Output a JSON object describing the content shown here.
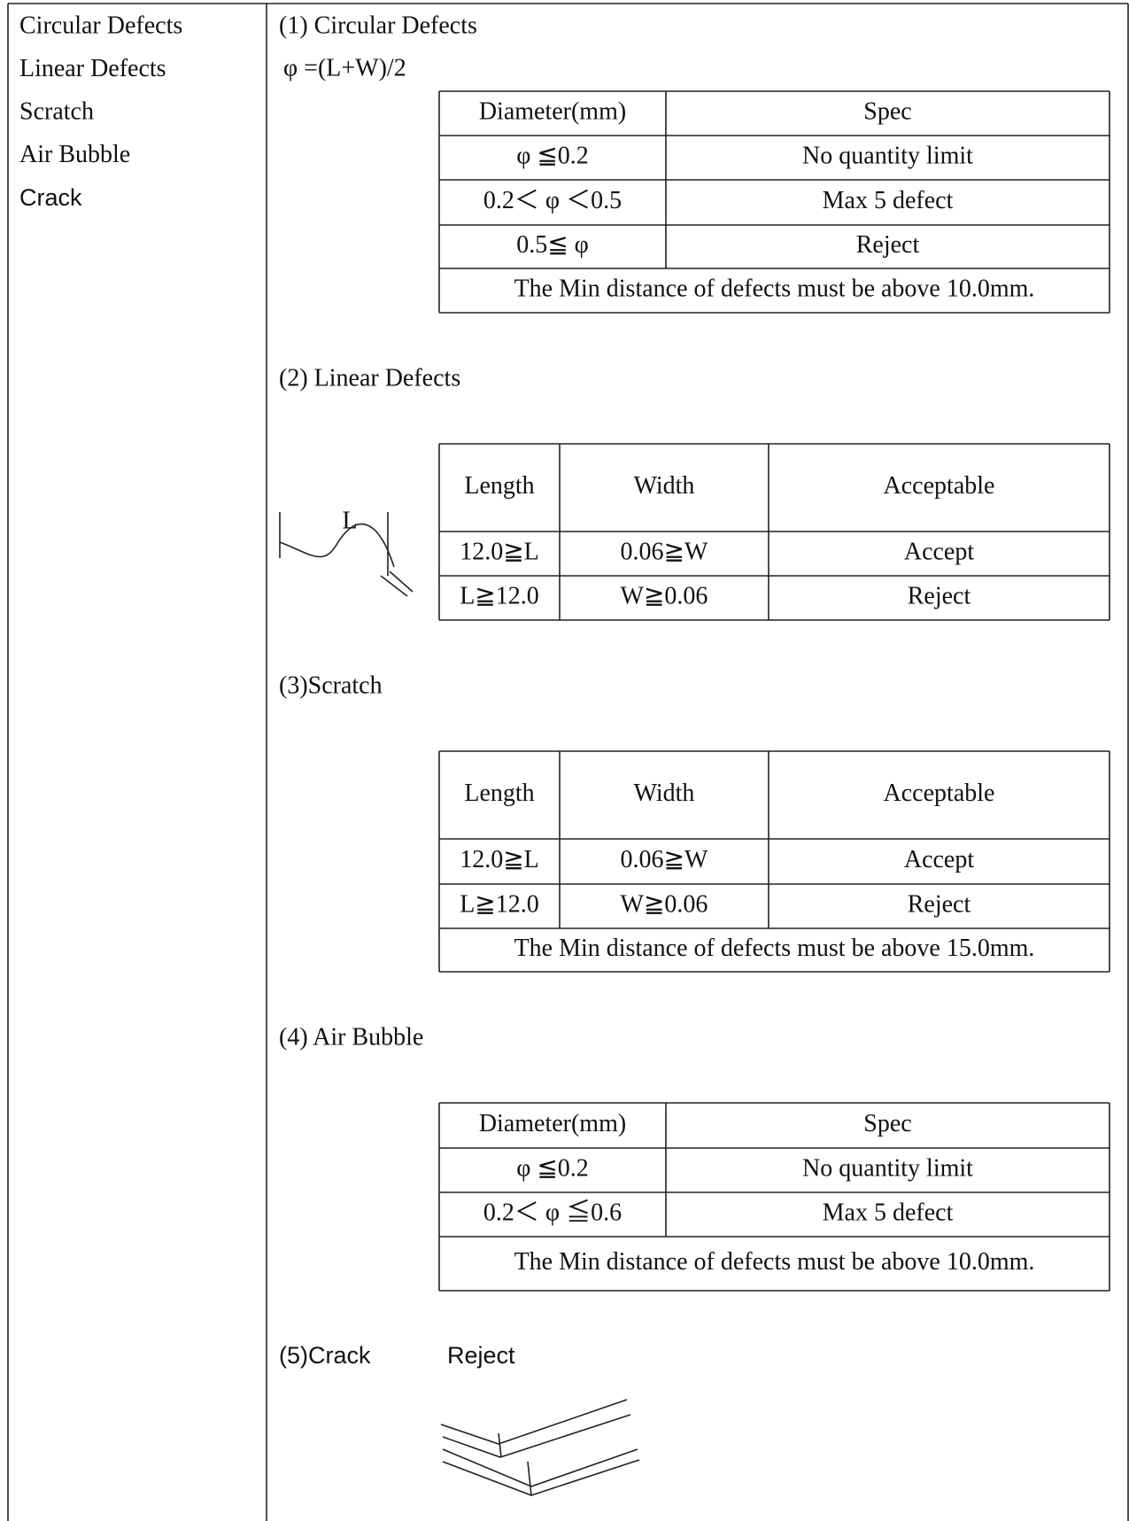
{
  "sidebar": {
    "items": [
      "Circular Defects",
      "Linear Defects",
      "Scratch",
      "Air Bubble",
      "Crack"
    ]
  },
  "sections": [
    {
      "heading": "(1) Circular Defects",
      "formula": "φ =(L+W)/2",
      "table": {
        "header": [
          "Diameter(mm)",
          "Spec"
        ],
        "rows": [
          [
            "φ ≦0.2",
            "No quantity limit"
          ],
          [
            "0.2＜ φ ＜0.5",
            "Max 5 defect"
          ],
          [
            "0.5≦ φ",
            "Reject"
          ]
        ],
        "note": "The Min distance of defects must be above 10.0mm."
      }
    },
    {
      "heading": "(2) Linear Defects",
      "figure_label": "L",
      "table": {
        "header": [
          "Length",
          "Width",
          "Acceptable"
        ],
        "rows": [
          [
            "12.0≧L",
            "0.06≧W",
            "Accept"
          ],
          [
            "L≧12.0",
            "W≧0.06",
            "Reject"
          ]
        ]
      }
    },
    {
      "heading": "(3)Scratch",
      "table": {
        "header": [
          "Length",
          "Width",
          "Acceptable"
        ],
        "rows": [
          [
            "12.0≧L",
            "0.06≧W",
            "Accept"
          ],
          [
            "L≧12.0",
            "W≧0.06",
            "Reject"
          ]
        ],
        "note": "The Min distance of defects must be above 15.0mm."
      }
    },
    {
      "heading": "(4) Air Bubble",
      "table": {
        "header": [
          "Diameter(mm)",
          "Spec"
        ],
        "rows": [
          [
            "φ ≦0.2",
            "No quantity limit"
          ],
          [
            "0.2＜ φ ≦0.6",
            "Max 5 defect"
          ]
        ],
        "note": "The Min distance of defects must be above 10.0mm."
      }
    },
    {
      "heading": "(5)Crack",
      "result": "Reject"
    }
  ]
}
